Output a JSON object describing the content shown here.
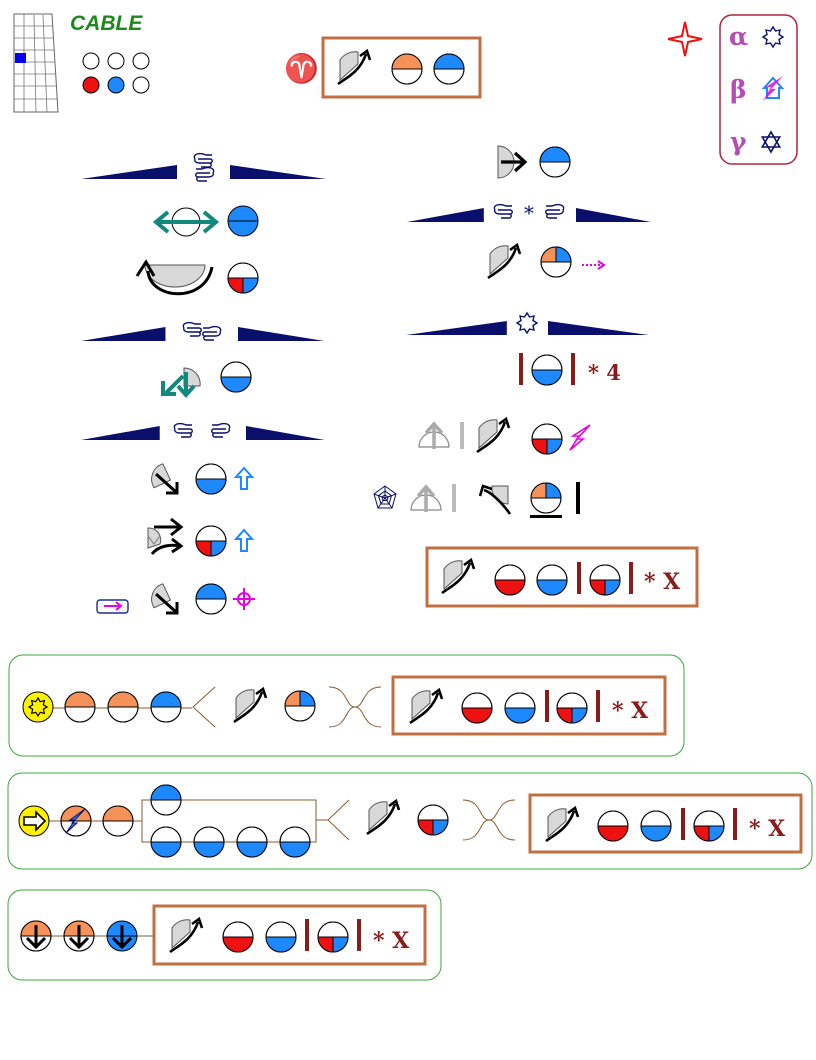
{
  "header": {
    "title": "CABLE",
    "aries": "♈"
  },
  "legend": {
    "items": [
      {
        "letter": "α",
        "icon": "sun-outline-icon"
      },
      {
        "letter": "β",
        "icon": "house-lightning-icon"
      },
      {
        "letter": "γ",
        "icon": "star-of-david-icon"
      }
    ]
  },
  "rows": {
    "four_count": "* 4",
    "times_x": "* X"
  },
  "colors": {
    "orange": "#F5925A",
    "blue": "#1E88FF",
    "red": "#EE1111",
    "navy": "#0A0F6B",
    "teal": "#12887F",
    "maroon": "#8B1A1A",
    "magenta": "#E600E6",
    "box_border": "#C07040",
    "group_border": "#3CA83C",
    "highlight_yellow": "#FFF200",
    "cable_green": "#1B8A1B"
  }
}
